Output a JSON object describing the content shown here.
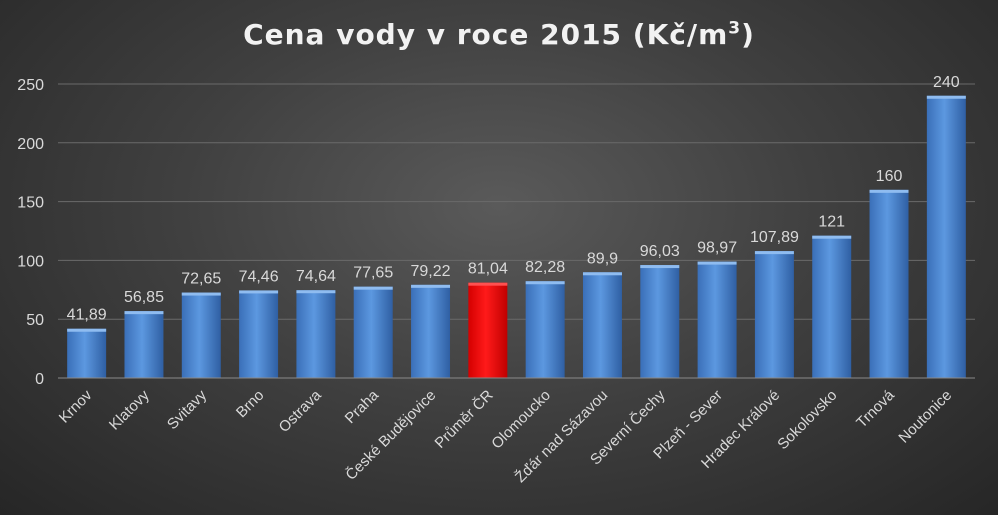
{
  "chart_data": {
    "type": "bar",
    "title": "Cena vody v roce 2015 (Kč/m",
    "title_sup": "3",
    "title_end": ")",
    "xlabel": "",
    "ylabel": "",
    "ylim": [
      0,
      250
    ],
    "yticks": [
      0,
      50,
      100,
      150,
      200,
      250
    ],
    "grid": true,
    "categories": [
      "Krnov",
      "Klatovy",
      "Svitavy",
      "Brno",
      "Ostrava",
      "Praha",
      "České Budějovice",
      "Průměr ČR",
      "Olomoucko",
      "Žďár nad Sázavou",
      "Severní Čechy",
      "Plzeň - Sever",
      "Hradec Králové",
      "Sokolovsko",
      "Trnová",
      "Noutonice"
    ],
    "values": [
      41.89,
      56.85,
      72.65,
      74.46,
      74.64,
      77.65,
      79.22,
      81.04,
      82.28,
      89.9,
      96.03,
      98.97,
      107.89,
      121,
      160,
      240
    ],
    "value_labels": [
      "41,89",
      "56,85",
      "72,65",
      "74,46",
      "74,64",
      "77,65",
      "79,22",
      "81,04",
      "82,28",
      "89,9",
      "96,03",
      "98,97",
      "107,89",
      "121",
      "160",
      "240"
    ],
    "highlight_index": 7,
    "colors": {
      "bar": "#4a86d4",
      "highlight": "#ff0000",
      "grid": "#6a6a6a",
      "text": "#d9d9d9"
    }
  }
}
